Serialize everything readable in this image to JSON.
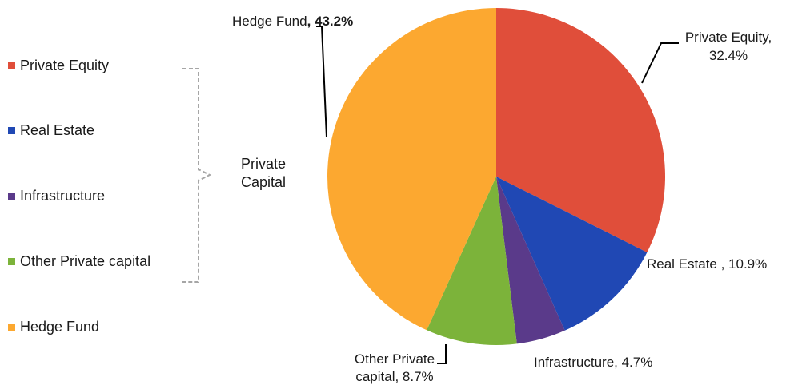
{
  "chart_data": {
    "type": "pie",
    "slices": [
      {
        "label": "Private Equity",
        "value": 32.4,
        "color": "#e04e3a",
        "callout_line1": "Private Equity,",
        "callout_line2": "32.4%"
      },
      {
        "label": "Real Estate",
        "value": 10.9,
        "color": "#2048b4",
        "callout_line1": "Real Estate , 10.9%"
      },
      {
        "label": "Infrastructure",
        "value": 4.7,
        "color": "#5a3a8a",
        "callout_line1": "Infrastructure, 4.7%"
      },
      {
        "label": "Other Private capital",
        "value": 8.7,
        "color": "#7cb33a",
        "callout_line1": "Other Private",
        "callout_line2": "capital, 8.7%"
      },
      {
        "label": "Hedge Fund",
        "value": 43.2,
        "color": "#fca830",
        "callout_line1": "Hedge Fund",
        "callout_bold": ", 43.2%"
      }
    ],
    "legend": [
      "Private Equity",
      "Real Estate",
      "Infrastructure",
      "Other Private capital",
      "Hedge Fund"
    ],
    "legend_position": "left",
    "group_bracket": {
      "label_line1": "Private",
      "label_line2": "Capital",
      "covers": [
        "Private Equity",
        "Real Estate",
        "Infrastructure",
        "Other Private capital"
      ]
    }
  }
}
